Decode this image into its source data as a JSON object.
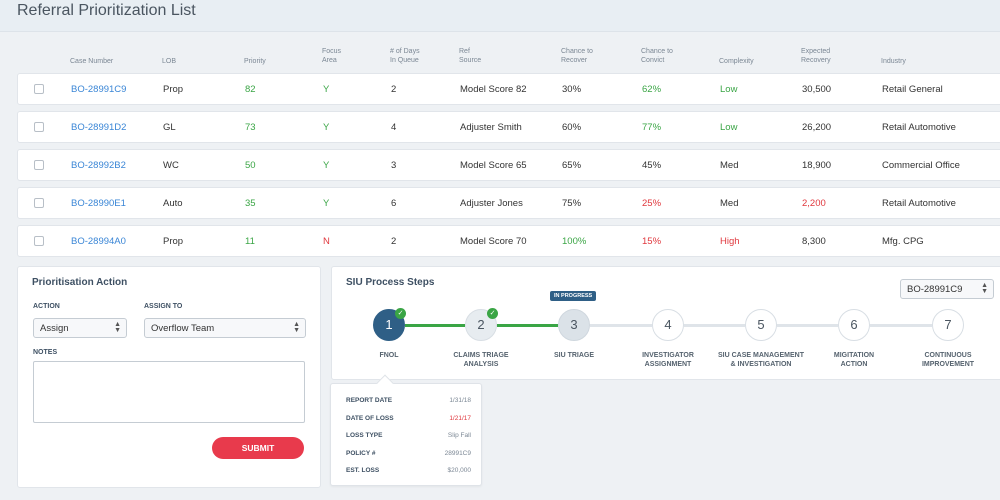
{
  "page": {
    "title": "Referral Prioritization List"
  },
  "table": {
    "headers": [
      {
        "key": "case_number",
        "label": "Case Number"
      },
      {
        "key": "lob",
        "label": "LOB"
      },
      {
        "key": "priority",
        "label": "Priority"
      },
      {
        "key": "focus_area",
        "label": "Focus\nArea"
      },
      {
        "key": "days_in_queue",
        "label": "# of Days\nIn Queue"
      },
      {
        "key": "ref_source",
        "label": "Ref\nSource"
      },
      {
        "key": "chance_recover",
        "label": "Chance to\nRecover"
      },
      {
        "key": "chance_convict",
        "label": "Chance to\nConvict"
      },
      {
        "key": "complexity",
        "label": "Complexity"
      },
      {
        "key": "expected_recovery",
        "label": "Expected\nRecovery"
      },
      {
        "key": "industry",
        "label": "Industry"
      }
    ],
    "rows": [
      {
        "case_number": "BO-28991C9",
        "lob": "Prop",
        "priority": "82",
        "focus_area": "Y",
        "days_in_queue": "2",
        "ref_source": "Model Score 82",
        "chance_recover": "30%",
        "chance_convict": "62%",
        "complexity": "Low",
        "expected_recovery": "30,500",
        "industry": "Retail General"
      },
      {
        "case_number": "BO-28991D2",
        "lob": "GL",
        "priority": "73",
        "focus_area": "Y",
        "days_in_queue": "4",
        "ref_source": "Adjuster Smith",
        "chance_recover": "60%",
        "chance_convict": "77%",
        "complexity": "Low",
        "expected_recovery": "26,200",
        "industry": "Retail Automotive"
      },
      {
        "case_number": "BO-28992B2",
        "lob": "WC",
        "priority": "50",
        "focus_area": "Y",
        "days_in_queue": "3",
        "ref_source": "Model Score 65",
        "chance_recover": "65%",
        "chance_convict": "45%",
        "complexity": "Med",
        "expected_recovery": "18,900",
        "industry": "Commercial Office"
      },
      {
        "case_number": "BO-28990E1",
        "lob": "Auto",
        "priority": "35",
        "focus_area": "Y",
        "days_in_queue": "6",
        "ref_source": "Adjuster Jones",
        "chance_recover": "75%",
        "chance_convict": "25%",
        "complexity": "Med",
        "expected_recovery": "2,200",
        "industry": "Retail Automotive"
      },
      {
        "case_number": "BO-28994A0",
        "lob": "Prop",
        "priority": "11",
        "focus_area": "N",
        "days_in_queue": "2",
        "ref_source": "Model Score 70",
        "chance_recover": "100%",
        "chance_convict": "15%",
        "complexity": "High",
        "expected_recovery": "8,300",
        "industry": "Mfg. CPG"
      }
    ]
  },
  "colors": {
    "link": "#3a86d6",
    "good": "#3aa545",
    "bad": "#e0383e",
    "neutral": "#333333"
  },
  "action_panel": {
    "title": "Prioritisation Action",
    "action_label": "ACTION",
    "action_value": "Assign",
    "assign_label": "ASSIGN TO",
    "assign_value": "Overflow Team",
    "notes_label": "NOTES",
    "submit_label": "SUBMIT"
  },
  "siu": {
    "title": "SIU Process Steps",
    "case_select": "BO-28991C9",
    "badge": "IN PROGRESS",
    "steps": [
      {
        "num": "1",
        "label": "FNOL",
        "state": "done"
      },
      {
        "num": "2",
        "label": "CLAIMS TRIAGE\nANALYSIS",
        "state": "done"
      },
      {
        "num": "3",
        "label": "SIU TRIAGE",
        "state": "current"
      },
      {
        "num": "4",
        "label": "INVESTIGATOR\nASSIGNMENT",
        "state": "todo"
      },
      {
        "num": "5",
        "label": "SIU CASE MANAGEMENT\n& INVESTIGATION",
        "state": "todo"
      },
      {
        "num": "6",
        "label": "MIGITATION\nACTION",
        "state": "todo"
      },
      {
        "num": "7",
        "label": "CONTINUOUS\nIMPROVEMENT",
        "state": "todo"
      }
    ],
    "details": [
      {
        "k": "REPORT DATE",
        "v": "1/31/18",
        "tone": "neutral"
      },
      {
        "k": "DATE OF LOSS",
        "v": "1/21/17",
        "tone": "bad"
      },
      {
        "k": "LOSS TYPE",
        "v": "Slip Fall",
        "tone": "neutral"
      },
      {
        "k": "POLICY #",
        "v": "28991C9",
        "tone": "neutral"
      },
      {
        "k": "EST. LOSS",
        "v": "$20,000",
        "tone": "neutral"
      }
    ]
  }
}
